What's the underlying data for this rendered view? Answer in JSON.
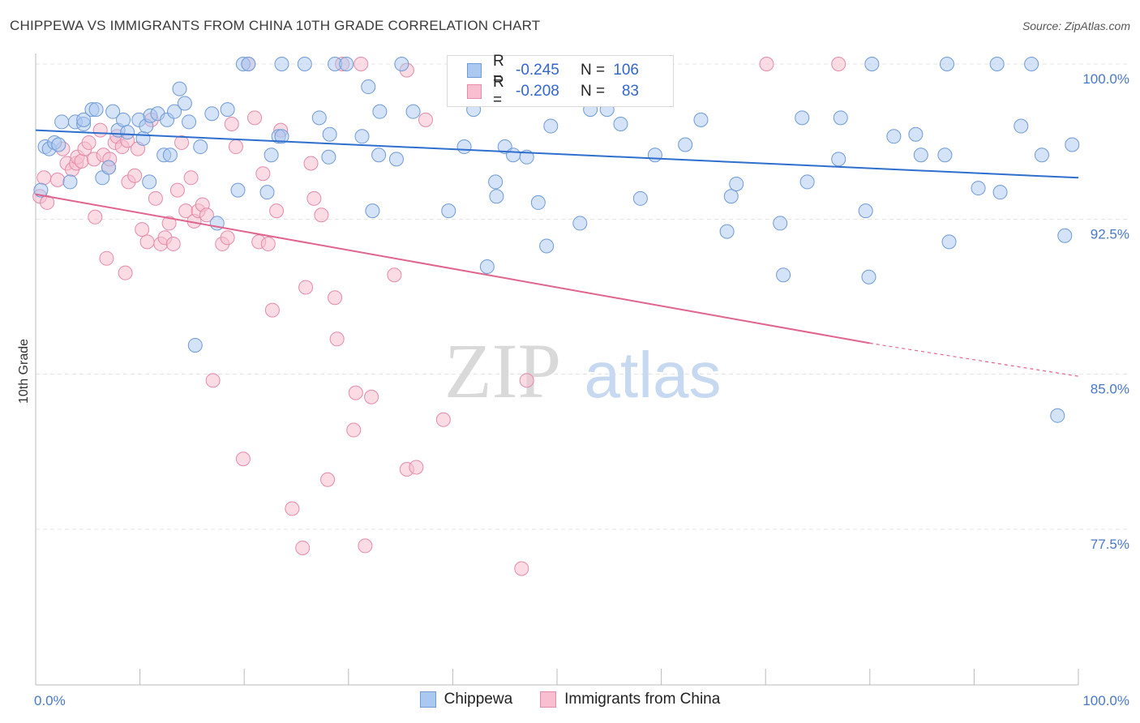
{
  "header": {
    "title": "CHIPPEWA VS IMMIGRANTS FROM CHINA 10TH GRADE CORRELATION CHART",
    "source": "Source: ZipAtlas.com"
  },
  "watermark": {
    "zip": "ZIP",
    "atlas": "atlas"
  },
  "colors": {
    "blue_fill": "#aac8f0",
    "blue_stroke": "#6f9ad6",
    "blue_line": "#2e6fce",
    "pink_fill": "#f7bfd0",
    "pink_stroke": "#e58aa8",
    "pink_line": "#e0648c",
    "tick_label": "#4a78c8",
    "grid": "#e3e3e3"
  },
  "legend": {
    "series": [
      {
        "name": "Chippewa",
        "r_label": "R =",
        "r_value": "-0.245",
        "n_label": "N =",
        "n_value": "106"
      },
      {
        "name": "Immigrants from China",
        "r_label": "R =",
        "r_value": "-0.208",
        "n_label": "N =",
        "n_value": "83"
      }
    ]
  },
  "chart_data": {
    "type": "scatter",
    "title": "CHIPPEWA VS IMMIGRANTS FROM CHINA 10TH GRADE CORRELATION CHART",
    "xlabel": "",
    "ylabel": "10th Grade",
    "xlim": [
      0,
      100
    ],
    "ylim": [
      70.0,
      101.0
    ],
    "x_tick_labels": [
      "0.0%",
      "100.0%"
    ],
    "y_ticks": [
      77.5,
      85.0,
      92.5,
      100.0
    ],
    "y_tick_labels": [
      "77.5%",
      "85.0%",
      "92.5%",
      "100.0%"
    ],
    "grid": true,
    "legend_position": "top-center",
    "series": [
      {
        "name": "Chippewa",
        "trend": {
          "x": [
            0,
            100
          ],
          "y": [
            96.8,
            94.5
          ]
        },
        "points": [
          [
            0.5,
            93.9
          ],
          [
            0.9,
            96.0
          ],
          [
            1.3,
            95.9
          ],
          [
            1.8,
            96.2
          ],
          [
            2.2,
            96.1
          ],
          [
            2.5,
            97.2
          ],
          [
            3.3,
            94.3
          ],
          [
            3.8,
            97.2
          ],
          [
            4.6,
            97.1
          ],
          [
            4.6,
            97.3
          ],
          [
            5.4,
            97.8
          ],
          [
            5.8,
            97.8
          ],
          [
            6.4,
            94.5
          ],
          [
            7.0,
            95.0
          ],
          [
            7.4,
            97.7
          ],
          [
            7.9,
            96.8
          ],
          [
            8.4,
            97.3
          ],
          [
            8.8,
            96.7
          ],
          [
            9.9,
            97.3
          ],
          [
            10.3,
            96.4
          ],
          [
            10.6,
            97.0
          ],
          [
            11.0,
            97.5
          ],
          [
            11.7,
            97.6
          ],
          [
            12.3,
            95.6
          ],
          [
            12.6,
            97.3
          ],
          [
            12.9,
            95.6
          ],
          [
            13.3,
            97.7
          ],
          [
            13.8,
            98.8
          ],
          [
            14.3,
            98.1
          ],
          [
            14.7,
            97.2
          ],
          [
            15.3,
            86.4
          ],
          [
            15.8,
            96.0
          ],
          [
            16.9,
            97.6
          ],
          [
            17.4,
            92.3
          ],
          [
            18.4,
            97.8
          ],
          [
            19.4,
            93.9
          ],
          [
            19.9,
            100.0
          ],
          [
            20.4,
            100.0
          ],
          [
            22.2,
            93.8
          ],
          [
            22.6,
            95.6
          ],
          [
            23.3,
            96.5
          ],
          [
            23.6,
            96.5
          ],
          [
            23.6,
            100.0
          ],
          [
            25.8,
            100.0
          ],
          [
            27.2,
            97.4
          ],
          [
            28.1,
            95.5
          ],
          [
            28.2,
            96.6
          ],
          [
            28.7,
            100.0
          ],
          [
            29.8,
            100.0
          ],
          [
            31.9,
            98.9
          ],
          [
            31.3,
            96.5
          ],
          [
            32.3,
            92.9
          ],
          [
            32.9,
            95.6
          ],
          [
            33.0,
            97.7
          ],
          [
            35.1,
            100.0
          ],
          [
            36.2,
            97.7
          ],
          [
            39.6,
            92.9
          ],
          [
            41.1,
            96.0
          ],
          [
            42.0,
            97.8
          ],
          [
            42.6,
            99.2
          ],
          [
            43.3,
            90.2
          ],
          [
            44.1,
            94.3
          ],
          [
            44.2,
            93.6
          ],
          [
            45.0,
            96.0
          ],
          [
            45.8,
            95.6
          ],
          [
            47.1,
            95.5
          ],
          [
            48.2,
            93.3
          ],
          [
            49.0,
            91.2
          ],
          [
            49.4,
            97.0
          ],
          [
            52.2,
            92.3
          ],
          [
            53.2,
            97.8
          ],
          [
            54.8,
            97.8
          ],
          [
            56.1,
            97.1
          ],
          [
            58.0,
            93.5
          ],
          [
            59.4,
            95.6
          ],
          [
            62.3,
            96.1
          ],
          [
            63.8,
            97.3
          ],
          [
            66.3,
            91.9
          ],
          [
            66.7,
            93.6
          ],
          [
            67.2,
            94.2
          ],
          [
            71.4,
            92.3
          ],
          [
            71.7,
            89.8
          ],
          [
            73.5,
            97.4
          ],
          [
            74.0,
            94.3
          ],
          [
            77.0,
            95.4
          ],
          [
            77.2,
            97.4
          ],
          [
            79.6,
            92.9
          ],
          [
            79.9,
            89.7
          ],
          [
            80.2,
            100.0
          ],
          [
            82.3,
            96.5
          ],
          [
            84.4,
            96.6
          ],
          [
            84.9,
            95.6
          ],
          [
            87.2,
            95.6
          ],
          [
            87.6,
            91.4
          ],
          [
            87.4,
            100.0
          ],
          [
            90.4,
            94.0
          ],
          [
            92.2,
            100.0
          ],
          [
            92.5,
            93.8
          ],
          [
            94.5,
            97.0
          ],
          [
            95.5,
            100.0
          ],
          [
            96.5,
            95.6
          ],
          [
            98.0,
            83.0
          ],
          [
            98.7,
            91.7
          ],
          [
            99.4,
            96.1
          ],
          [
            10.9,
            94.3
          ],
          [
            34.6,
            95.4
          ]
        ]
      },
      {
        "name": "Immigrants from China",
        "trend": {
          "x": [
            0,
            80
          ],
          "y": [
            93.7,
            86.5
          ]
        },
        "trend_dashed": {
          "x": [
            80,
            100
          ],
          "y": [
            86.5,
            84.9
          ]
        },
        "points": [
          [
            0.4,
            93.6
          ],
          [
            0.8,
            94.5
          ],
          [
            1.1,
            93.3
          ],
          [
            2.1,
            94.4
          ],
          [
            2.6,
            95.9
          ],
          [
            3.0,
            95.2
          ],
          [
            3.5,
            94.9
          ],
          [
            3.9,
            95.2
          ],
          [
            4.0,
            95.5
          ],
          [
            4.4,
            95.3
          ],
          [
            4.7,
            95.9
          ],
          [
            5.1,
            96.2
          ],
          [
            5.6,
            95.4
          ],
          [
            5.7,
            92.6
          ],
          [
            6.2,
            96.8
          ],
          [
            6.5,
            95.6
          ],
          [
            7.0,
            95.0
          ],
          [
            7.1,
            95.4
          ],
          [
            7.6,
            96.2
          ],
          [
            7.8,
            96.5
          ],
          [
            8.3,
            96.0
          ],
          [
            8.8,
            96.3
          ],
          [
            8.9,
            94.3
          ],
          [
            9.5,
            94.6
          ],
          [
            9.8,
            95.9
          ],
          [
            10.2,
            92.0
          ],
          [
            10.7,
            91.4
          ],
          [
            11.1,
            97.3
          ],
          [
            11.5,
            93.5
          ],
          [
            12.0,
            91.3
          ],
          [
            12.4,
            91.6
          ],
          [
            12.8,
            92.3
          ],
          [
            13.2,
            91.3
          ],
          [
            13.6,
            93.9
          ],
          [
            14.0,
            96.2
          ],
          [
            14.4,
            92.9
          ],
          [
            14.9,
            94.5
          ],
          [
            15.2,
            92.4
          ],
          [
            15.6,
            92.9
          ],
          [
            16.0,
            93.2
          ],
          [
            16.4,
            92.7
          ],
          [
            17.0,
            84.7
          ],
          [
            17.9,
            91.3
          ],
          [
            18.4,
            91.6
          ],
          [
            18.8,
            97.1
          ],
          [
            19.2,
            96.0
          ],
          [
            19.9,
            80.9
          ],
          [
            20.4,
            100.0
          ],
          [
            21.0,
            97.4
          ],
          [
            21.4,
            91.4
          ],
          [
            21.8,
            94.7
          ],
          [
            22.3,
            91.3
          ],
          [
            22.7,
            88.1
          ],
          [
            23.1,
            92.9
          ],
          [
            23.5,
            96.8
          ],
          [
            24.6,
            78.5
          ],
          [
            25.6,
            76.6
          ],
          [
            25.9,
            89.2
          ],
          [
            26.4,
            95.2
          ],
          [
            26.7,
            93.5
          ],
          [
            27.4,
            92.7
          ],
          [
            28.0,
            79.9
          ],
          [
            28.7,
            88.7
          ],
          [
            28.9,
            86.7
          ],
          [
            29.4,
            100.0
          ],
          [
            30.5,
            82.3
          ],
          [
            30.7,
            84.1
          ],
          [
            31.2,
            100.0
          ],
          [
            31.6,
            76.7
          ],
          [
            32.2,
            83.9
          ],
          [
            34.4,
            89.8
          ],
          [
            35.6,
            99.7
          ],
          [
            35.6,
            80.4
          ],
          [
            36.5,
            80.5
          ],
          [
            37.4,
            97.3
          ],
          [
            39.1,
            82.8
          ],
          [
            40.2,
            100.0
          ],
          [
            46.6,
            75.6
          ],
          [
            47.1,
            84.7
          ],
          [
            70.1,
            100.0
          ],
          [
            77.0,
            100.0
          ],
          [
            8.6,
            89.9
          ],
          [
            6.8,
            90.6
          ]
        ]
      }
    ]
  }
}
